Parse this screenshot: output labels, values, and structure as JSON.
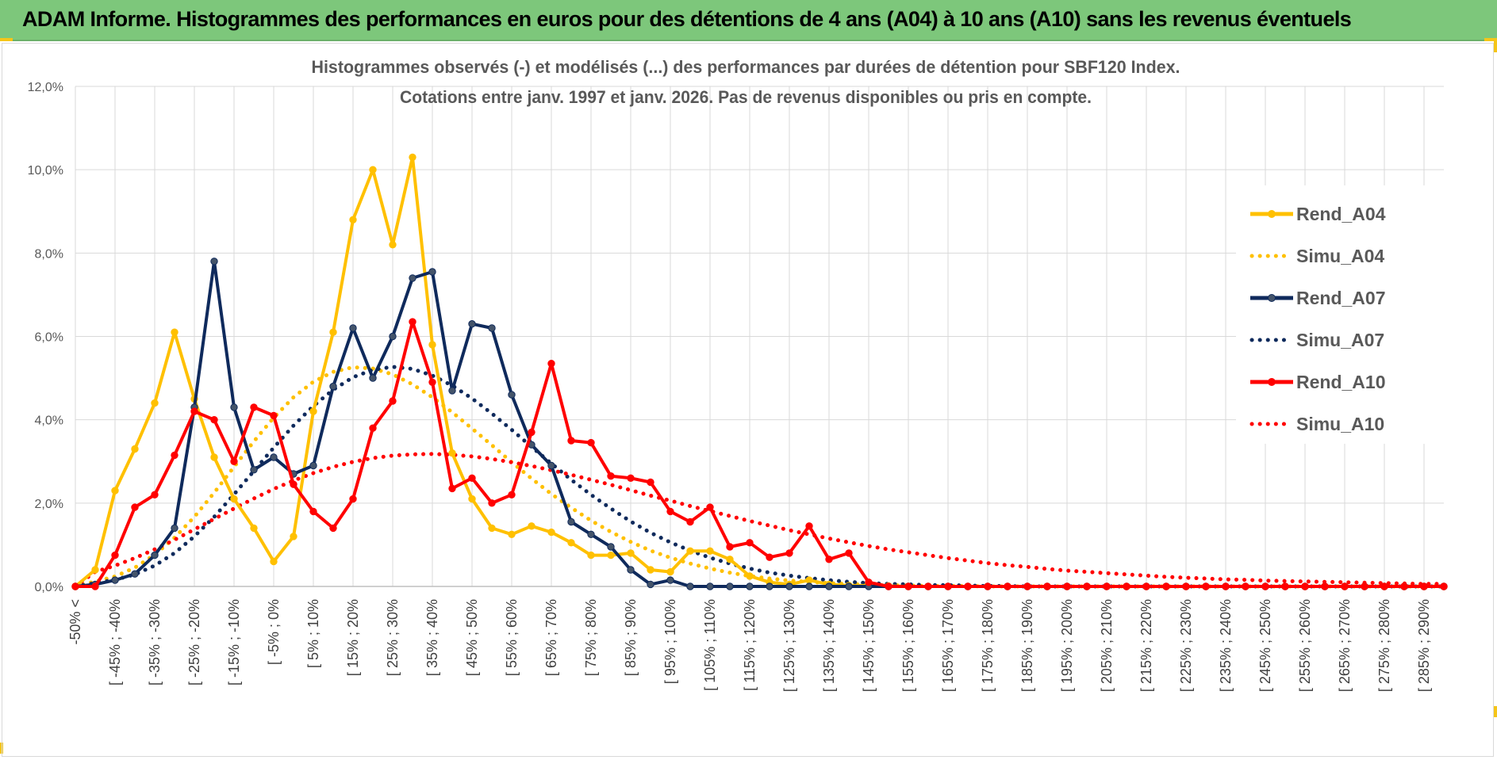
{
  "banner": {
    "title": "ADAM Informe. Histogrammes des performances en euros pour des détentions de 4 ans (A04) à 10 ans (A10) sans les revenus éventuels",
    "accent_color": "#7dc77b"
  },
  "chart_data": {
    "type": "line",
    "title": [
      "Histogrammes observés (-) et modélisés (...) des performances par durées de détention pour SBF120 Index.",
      "Cotations entre janv. 1997 et janv. 2026. Pas de revenus disponibles ou pris en compte."
    ],
    "xlabel": "",
    "ylabel": "",
    "ylim": [
      0,
      12
    ],
    "y_ticks": [
      "0,0%",
      "2,0%",
      "4,0%",
      "6,0%",
      "8,0%",
      "10,0%",
      "12,0%"
    ],
    "grid": true,
    "legend_position": "right",
    "x_tick_labels": [
      "-50% <",
      "[ -45% ; -40%",
      "[ -35% ; -30%",
      "[ -25% ; -20%",
      "[ -15% ; -10%",
      "[ -5% ; 0%",
      "[ 5% ; 10%",
      "[ 15% ; 20%",
      "[ 25% ; 30%",
      "[ 35% ; 40%",
      "[ 45% ; 50%",
      "[ 55% ; 60%",
      "[ 65% ; 70%",
      "[ 75% ; 80%",
      "[ 85% ; 90%",
      "[ 95% ; 100%",
      "[ 105% ; 110%",
      "[ 115% ; 120%",
      "[ 125% ; 130%",
      "[ 135% ; 140%",
      "[ 145% ; 150%",
      "[ 155% ; 160%",
      "[ 165% ; 170%",
      "[ 175% ; 180%",
      "[ 185% ; 190%",
      "[ 195% ; 200%",
      "[ 205% ; 210%",
      "[ 215% ; 220%",
      "[ 225% ; 230%",
      "[ 235% ; 240%",
      "[ 245% ; 250%",
      "[ 255% ; 260%",
      "[ 265% ; 270%",
      "[ 275% ; 280%",
      "[ 285% ; 290%"
    ],
    "series": [
      {
        "name": "Rend_A04",
        "style": "solid",
        "color": "#ffc000",
        "values": [
          0,
          0.4,
          2.3,
          3.3,
          4.4,
          6.1,
          4.5,
          3.1,
          2.1,
          1.4,
          0.6,
          1.2,
          4.2,
          6.1,
          8.8,
          10,
          8.2,
          10.3,
          5.8,
          3.2,
          2.1,
          1.4,
          1.25,
          1.45,
          1.3,
          1.05,
          0.75,
          0.75,
          0.8,
          0.4,
          0.35,
          0.85,
          0.85,
          0.65,
          0.25,
          0.1,
          0.05,
          0.15,
          0.05,
          0.02,
          0.02,
          0.01,
          0,
          0,
          0,
          0,
          0,
          0,
          0,
          0,
          0,
          0,
          0,
          0,
          0,
          0,
          0,
          0,
          0,
          0,
          0,
          0,
          0,
          0,
          0,
          0,
          0,
          0,
          0,
          0
        ]
      },
      {
        "name": "Simu_A04",
        "style": "dotted",
        "color": "#ffc000",
        "values": [
          0,
          0.12,
          0.24,
          0.45,
          0.76,
          1.17,
          1.67,
          2.25,
          2.87,
          3.48,
          4.05,
          4.54,
          4.91,
          5.15,
          5.26,
          5.23,
          5.09,
          4.85,
          4.54,
          4.18,
          3.79,
          3.39,
          2.98,
          2.59,
          2.22,
          1.89,
          1.58,
          1.31,
          1.07,
          0.86,
          0.69,
          0.55,
          0.43,
          0.33,
          0.25,
          0.19,
          0.14,
          0.11,
          0.08,
          0.06,
          0.04,
          0.03,
          0.02,
          0.01,
          0.01,
          0.01,
          0,
          0,
          0,
          0,
          0,
          0,
          0,
          0,
          0,
          0,
          0,
          0,
          0,
          0,
          0,
          0,
          0,
          0,
          0,
          0,
          0,
          0,
          0,
          0
        ]
      },
      {
        "name": "Rend_A07",
        "style": "solid",
        "color": "#0f2a5c",
        "values": [
          0,
          0.05,
          0.15,
          0.3,
          0.75,
          1.4,
          4.3,
          7.8,
          4.3,
          2.8,
          3.1,
          2.7,
          2.9,
          4.8,
          6.2,
          5,
          6,
          7.4,
          7.55,
          4.7,
          6.3,
          6.2,
          4.6,
          3.4,
          2.9,
          1.55,
          1.25,
          0.95,
          0.4,
          0.05,
          0.15,
          0,
          0,
          0,
          0,
          0,
          0,
          0,
          0,
          0,
          0,
          0,
          0,
          0,
          0,
          0,
          0,
          0,
          0,
          0,
          0,
          0,
          0,
          0,
          0,
          0,
          0,
          0,
          0,
          0,
          0,
          0,
          0,
          0,
          0,
          0,
          0,
          0,
          0,
          0
        ]
      },
      {
        "name": "Simu_A07",
        "style": "dotted",
        "color": "#0f2a5c",
        "values": [
          0,
          0.08,
          0.16,
          0.29,
          0.5,
          0.8,
          1.2,
          1.67,
          2.21,
          2.77,
          3.33,
          3.86,
          4.33,
          4.72,
          5.02,
          5.2,
          5.27,
          5.22,
          5.06,
          4.82,
          4.51,
          4.15,
          3.76,
          3.35,
          2.95,
          2.56,
          2.2,
          1.87,
          1.56,
          1.29,
          1.06,
          0.86,
          0.69,
          0.55,
          0.43,
          0.33,
          0.26,
          0.2,
          0.15,
          0.11,
          0.08,
          0.06,
          0.05,
          0.03,
          0.03,
          0.02,
          0.01,
          0.01,
          0,
          0,
          0,
          0,
          0,
          0,
          0,
          0,
          0,
          0,
          0,
          0,
          0,
          0,
          0,
          0,
          0,
          0,
          0,
          0,
          0,
          0
        ]
      },
      {
        "name": "Rend_A10",
        "style": "solid",
        "color": "#ff0000",
        "values": [
          0,
          0,
          0.75,
          1.9,
          2.2,
          3.15,
          4.2,
          4,
          3,
          4.3,
          4.1,
          2.45,
          1.8,
          1.4,
          2.1,
          3.8,
          4.45,
          6.35,
          4.9,
          2.35,
          2.6,
          2,
          2.2,
          3.7,
          5.35,
          3.5,
          3.45,
          2.65,
          2.6,
          2.5,
          1.8,
          1.55,
          1.9,
          0.95,
          1.05,
          0.7,
          0.8,
          1.45,
          0.65,
          0.8,
          0.1,
          0,
          0,
          0,
          0,
          0,
          0,
          0,
          0,
          0,
          0,
          0,
          0,
          0,
          0,
          0,
          0,
          0,
          0,
          0,
          0,
          0,
          0,
          0,
          0,
          0,
          0,
          0,
          0,
          0
        ]
      },
      {
        "name": "Simu_A10",
        "style": "dotted",
        "color": "#ff0000",
        "values": [
          0,
          0.35,
          0.5,
          0.68,
          0.89,
          1.12,
          1.37,
          1.62,
          1.87,
          2.11,
          2.34,
          2.54,
          2.72,
          2.87,
          2.99,
          3.08,
          3.14,
          3.17,
          3.18,
          3.16,
          3.12,
          3.06,
          2.98,
          2.89,
          2.79,
          2.68,
          2.56,
          2.44,
          2.31,
          2.18,
          2.06,
          1.93,
          1.81,
          1.69,
          1.57,
          1.46,
          1.35,
          1.25,
          1.15,
          1.06,
          0.97,
          0.89,
          0.82,
          0.75,
          0.68,
          0.62,
          0.56,
          0.51,
          0.47,
          0.42,
          0.38,
          0.35,
          0.32,
          0.29,
          0.26,
          0.23,
          0.21,
          0.19,
          0.17,
          0.16,
          0.14,
          0.13,
          0.12,
          0.11,
          0.1,
          0.09,
          0.08,
          0.07,
          0.06,
          0.06
        ]
      }
    ]
  }
}
